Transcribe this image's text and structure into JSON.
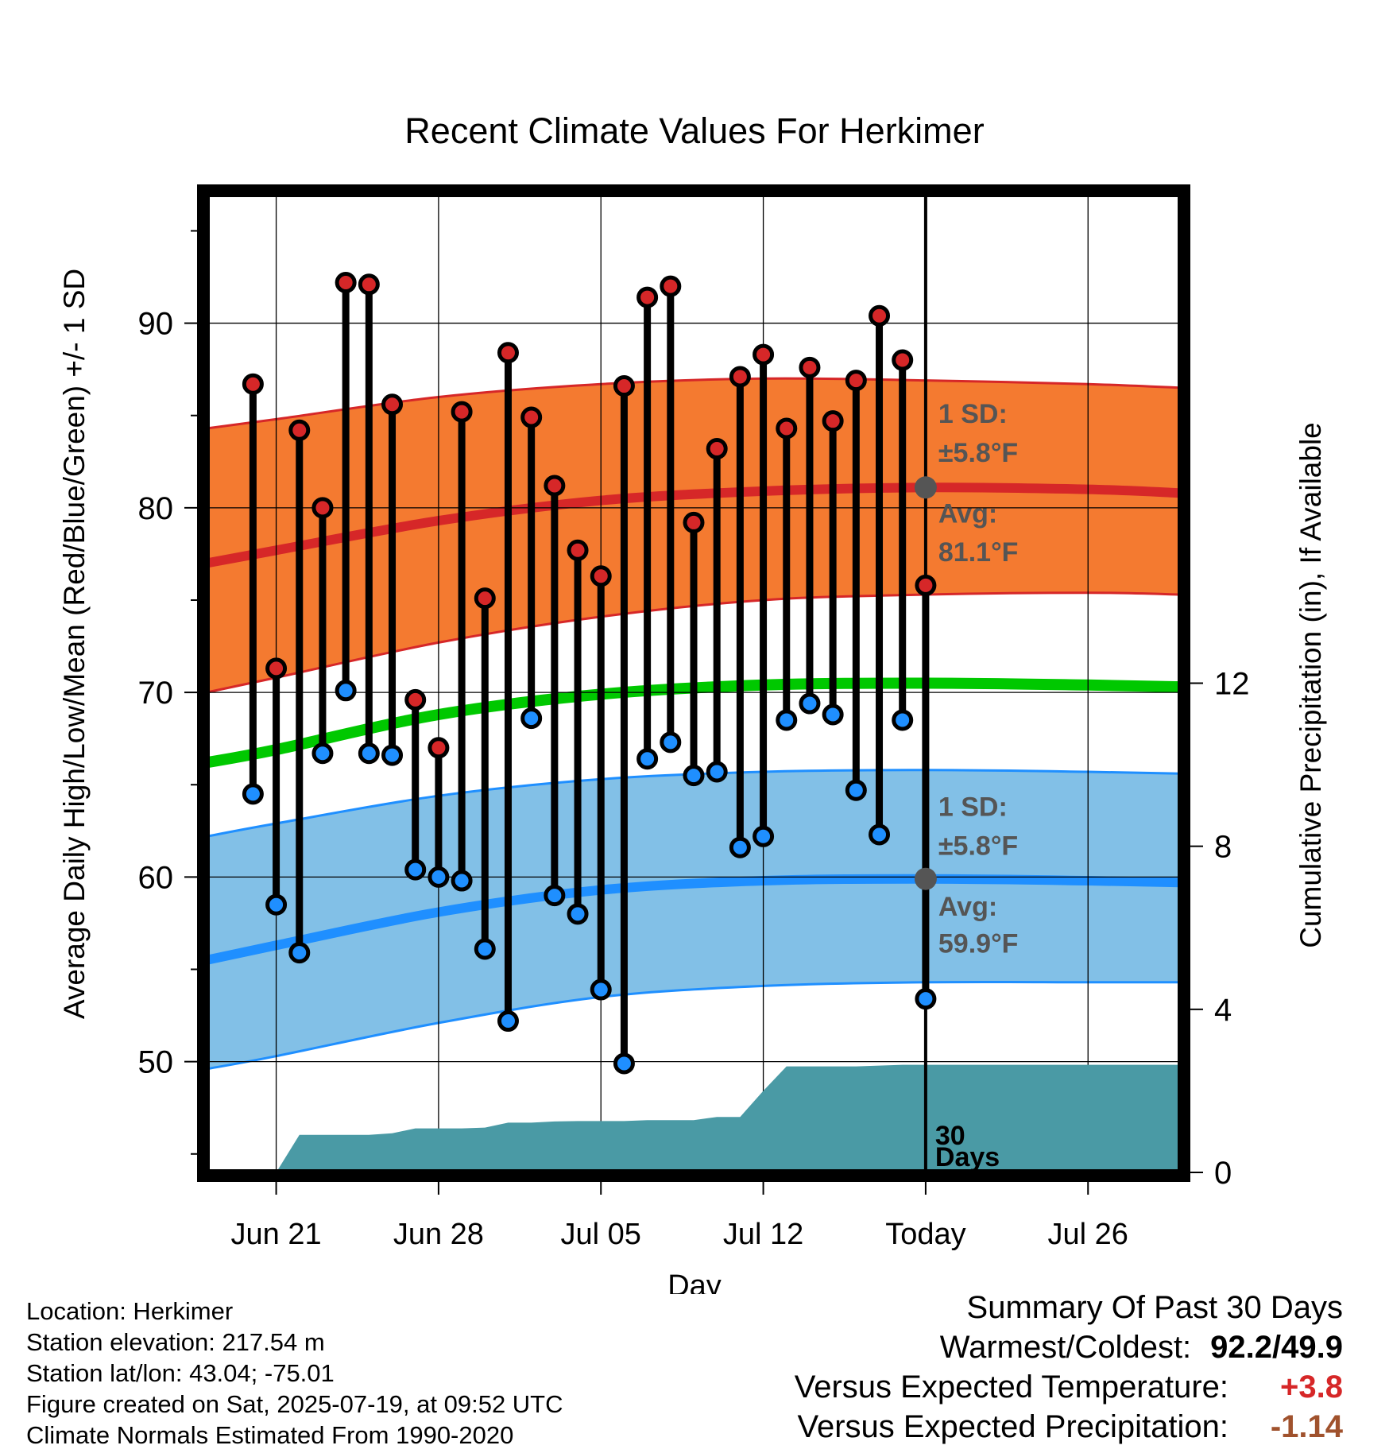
{
  "chart_data": {
    "type": "line",
    "title": "Recent Climate Values For Herkimer",
    "xlabel": "Day",
    "ylabel": "Average Daily High/Low/Mean (Red/Blue/Green) +/- 1 SD",
    "y2label": "Cumulative Precipitation (in), If Available",
    "ylim": [
      44,
      97
    ],
    "y2lim": [
      0,
      24
    ],
    "xlim": [
      "2025-06-18",
      "2025-07-30"
    ],
    "yticks": [
      50,
      60,
      70,
      80,
      90
    ],
    "y2ticks": [
      0,
      4,
      8,
      12
    ],
    "xticks": [
      {
        "date": "2025-06-21",
        "label": "Jun 21"
      },
      {
        "date": "2025-06-28",
        "label": "Jun 28"
      },
      {
        "date": "2025-07-05",
        "label": "Jul 05"
      },
      {
        "date": "2025-07-12",
        "label": "Jul 12"
      },
      {
        "date": "2025-07-19",
        "label": "Today"
      },
      {
        "date": "2025-07-26",
        "label": "Jul 26"
      }
    ],
    "grid": true,
    "today": "2025-07-19",
    "normals": {
      "dates": [
        "2025-06-18",
        "2025-06-21",
        "2025-06-28",
        "2025-07-05",
        "2025-07-12",
        "2025-07-19",
        "2025-07-26",
        "2025-07-30"
      ],
      "high_avg": [
        77.0,
        77.7,
        79.3,
        80.4,
        80.9,
        81.1,
        81.0,
        80.8
      ],
      "high_upper": [
        84.3,
        84.8,
        86.0,
        86.7,
        87.0,
        86.9,
        86.7,
        86.5
      ],
      "high_lower": [
        70.0,
        70.8,
        72.7,
        74.1,
        75.0,
        75.3,
        75.4,
        75.3
      ],
      "mean": [
        66.2,
        66.9,
        68.8,
        69.9,
        70.4,
        70.5,
        70.4,
        70.3
      ],
      "low_avg": [
        55.5,
        56.3,
        58.1,
        59.3,
        59.8,
        59.9,
        59.8,
        59.7
      ],
      "low_upper": [
        62.2,
        62.9,
        64.4,
        65.3,
        65.7,
        65.8,
        65.7,
        65.6
      ],
      "low_lower": [
        49.6,
        50.3,
        52.1,
        53.5,
        54.1,
        54.3,
        54.3,
        54.3
      ]
    },
    "series": [
      {
        "name": "High",
        "color": "#d62728",
        "x": [
          "2025-06-20",
          "2025-06-21",
          "2025-06-22",
          "2025-06-23",
          "2025-06-24",
          "2025-06-25",
          "2025-06-26",
          "2025-06-27",
          "2025-06-28",
          "2025-06-29",
          "2025-06-30",
          "2025-07-01",
          "2025-07-02",
          "2025-07-03",
          "2025-07-04",
          "2025-07-05",
          "2025-07-06",
          "2025-07-07",
          "2025-07-08",
          "2025-07-09",
          "2025-07-10",
          "2025-07-11",
          "2025-07-12",
          "2025-07-13",
          "2025-07-14",
          "2025-07-15",
          "2025-07-16",
          "2025-07-17",
          "2025-07-18",
          "2025-07-19"
        ],
        "values": [
          86.7,
          71.3,
          84.2,
          80.0,
          92.2,
          92.1,
          85.6,
          69.6,
          67.0,
          85.2,
          75.1,
          88.4,
          84.9,
          81.2,
          77.7,
          76.3,
          86.6,
          91.4,
          92.0,
          79.2,
          83.2,
          87.1,
          88.3,
          84.3,
          87.6,
          84.7,
          86.9,
          90.4,
          88.0,
          75.8
        ]
      },
      {
        "name": "Low",
        "color": "#1f8fff",
        "x": [
          "2025-06-20",
          "2025-06-21",
          "2025-06-22",
          "2025-06-23",
          "2025-06-24",
          "2025-06-25",
          "2025-06-26",
          "2025-06-27",
          "2025-06-28",
          "2025-06-29",
          "2025-06-30",
          "2025-07-01",
          "2025-07-02",
          "2025-07-03",
          "2025-07-04",
          "2025-07-05",
          "2025-07-06",
          "2025-07-07",
          "2025-07-08",
          "2025-07-09",
          "2025-07-10",
          "2025-07-11",
          "2025-07-12",
          "2025-07-13",
          "2025-07-14",
          "2025-07-15",
          "2025-07-16",
          "2025-07-17",
          "2025-07-18",
          "2025-07-19"
        ],
        "values": [
          64.5,
          58.5,
          55.9,
          66.7,
          70.1,
          66.7,
          66.6,
          60.4,
          60.0,
          59.8,
          56.1,
          52.2,
          68.6,
          59.0,
          58.0,
          53.9,
          49.9,
          66.4,
          67.3,
          65.5,
          65.7,
          61.6,
          62.2,
          68.5,
          69.4,
          68.8,
          64.7,
          62.3,
          68.5,
          53.4
        ]
      },
      {
        "name": "Cumulative Precipitation",
        "color": "#4a9aa5",
        "x": [
          "2025-06-21",
          "2025-06-22",
          "2025-06-23",
          "2025-06-24",
          "2025-06-25",
          "2025-06-26",
          "2025-06-27",
          "2025-06-28",
          "2025-06-29",
          "2025-06-30",
          "2025-07-01",
          "2025-07-02",
          "2025-07-03",
          "2025-07-04",
          "2025-07-05",
          "2025-07-06",
          "2025-07-07",
          "2025-07-08",
          "2025-07-09",
          "2025-07-10",
          "2025-07-11",
          "2025-07-12",
          "2025-07-13",
          "2025-07-14",
          "2025-07-15",
          "2025-07-16",
          "2025-07-17",
          "2025-07-18",
          "2025-07-19",
          "2025-07-30"
        ],
        "values": [
          0.0,
          0.92,
          0.92,
          0.92,
          0.92,
          0.96,
          1.08,
          1.08,
          1.08,
          1.1,
          1.22,
          1.22,
          1.25,
          1.26,
          1.26,
          1.26,
          1.28,
          1.28,
          1.28,
          1.36,
          1.36,
          2.0,
          2.6,
          2.6,
          2.6,
          2.6,
          2.62,
          2.64,
          2.64,
          2.64
        ]
      }
    ],
    "annotations": {
      "high_sd_label": "1 SD:",
      "high_sd_value": "±5.8°F",
      "high_avg_label": "Avg:",
      "high_avg_value": "81.1°F",
      "low_sd_label": "1 SD:",
      "low_sd_value": "±5.8°F",
      "low_avg_label": "Avg:",
      "low_avg_value": "59.9°F",
      "days_label_1": "30",
      "days_label_2": "Days"
    },
    "colors": {
      "high_band": "#f47a30",
      "high_line": "#d62728",
      "low_band": "#82c0e7",
      "low_line": "#1f8fff",
      "mean_line": "#00c800",
      "precip": "#4a9aa5",
      "annotation": "#555555"
    }
  },
  "footer": {
    "location": "Location: Herkimer",
    "elevation": "Station elevation: 217.54 m",
    "latlon": "Station lat/lon: 43.04; -75.01",
    "created": "Figure created on Sat, 2025-07-19, at 09:52 UTC",
    "normals": "Climate Normals Estimated From 1990-2020"
  },
  "summary": {
    "title": "Summary Of Past 30 Days",
    "warmest_label": "Warmest/Coldest:",
    "warmest_value": "92.2/49.9",
    "temp_label": "Versus Expected Temperature:",
    "temp_value": "+3.8",
    "temp_color": "#d62728",
    "precip_label": "Versus Expected Precipitation:",
    "precip_value": "-1.14",
    "precip_color": "#a0522d"
  }
}
